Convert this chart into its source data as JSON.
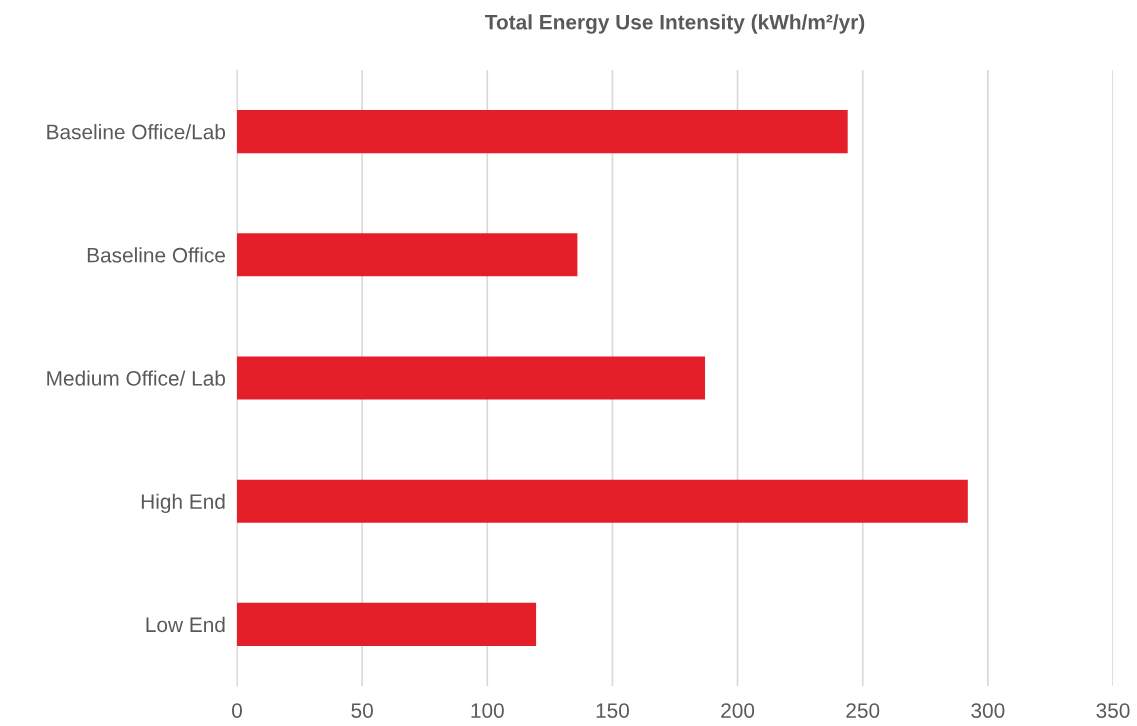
{
  "chart_data": {
    "type": "bar",
    "orientation": "horizontal",
    "title": "Total Energy Use Intensity (kWh/m²/yr)",
    "categories": [
      "Baseline Office/Lab",
      "Baseline Office",
      "Medium Office/ Lab",
      "High End",
      "Low End"
    ],
    "values": [
      244,
      136,
      187,
      292,
      119.5
    ],
    "color": "#e41f2a",
    "xlim": [
      0,
      350
    ],
    "xticks": [
      0,
      50,
      100,
      150,
      200,
      250,
      300,
      350
    ],
    "grid": "x",
    "legend": false
  }
}
